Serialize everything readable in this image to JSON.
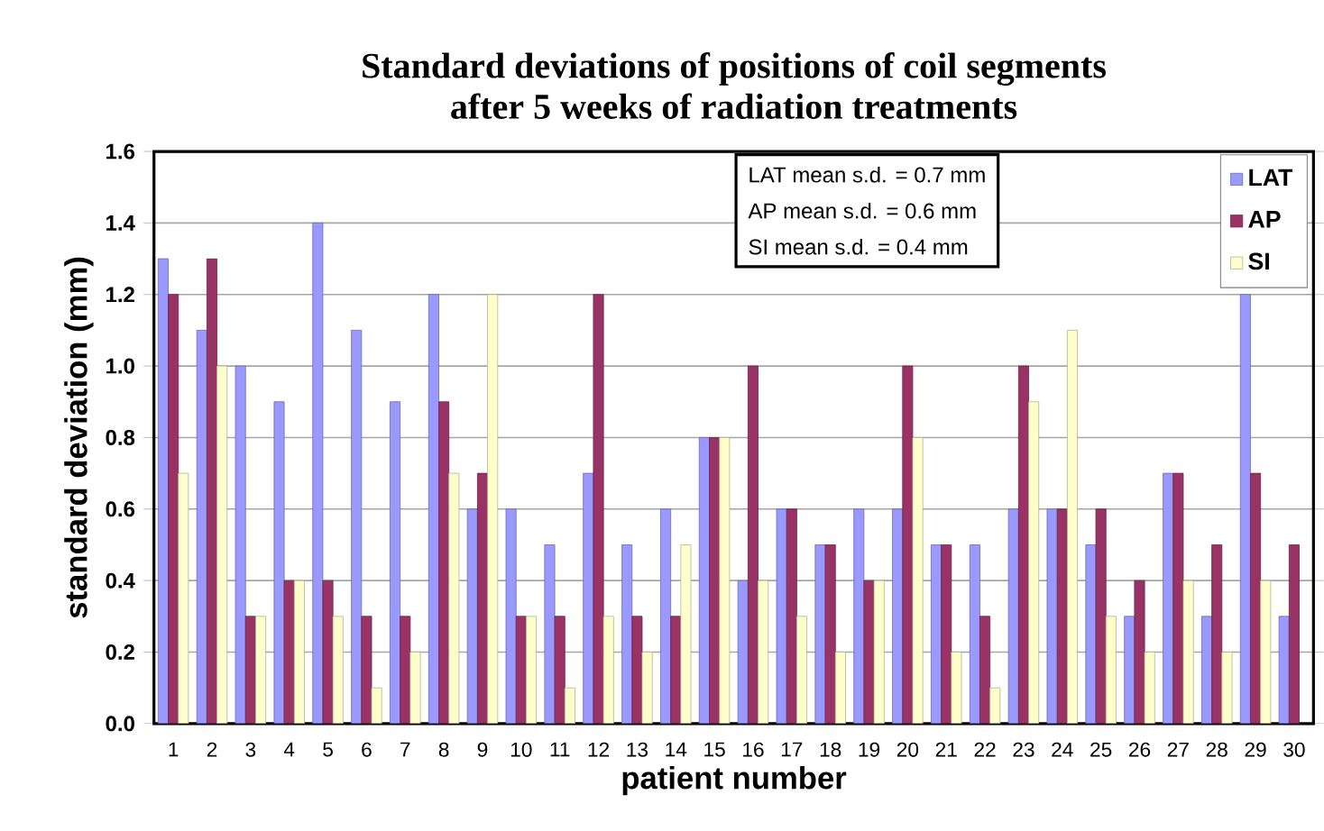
{
  "chart_data": {
    "type": "bar",
    "title": "Standard deviations of positions of coil segments\nafter 5 weeks of radiation treatments",
    "xlabel": "patient number",
    "ylabel": "standard deviation (mm)",
    "categories": [
      "1",
      "2",
      "3",
      "4",
      "5",
      "6",
      "7",
      "8",
      "9",
      "10",
      "11",
      "12",
      "13",
      "14",
      "15",
      "16",
      "17",
      "18",
      "19",
      "20",
      "21",
      "22",
      "23",
      "24",
      "25",
      "26",
      "27",
      "28",
      "29",
      "30"
    ],
    "series": [
      {
        "name": "LAT",
        "color": "#9999ff",
        "values": [
          1.3,
          1.1,
          1.0,
          0.9,
          1.4,
          1.1,
          0.9,
          1.2,
          0.6,
          0.6,
          0.5,
          0.7,
          0.5,
          0.6,
          0.8,
          0.4,
          0.6,
          0.5,
          0.6,
          0.6,
          0.5,
          0.5,
          0.6,
          0.6,
          0.5,
          0.3,
          0.7,
          0.3,
          1.2,
          0.3
        ]
      },
      {
        "name": "AP",
        "color": "#993366",
        "values": [
          1.2,
          1.3,
          0.3,
          0.4,
          0.4,
          0.3,
          0.3,
          0.9,
          0.7,
          0.3,
          0.3,
          1.2,
          0.3,
          0.3,
          0.8,
          1.0,
          0.6,
          0.5,
          0.4,
          1.0,
          0.5,
          0.3,
          1.0,
          0.6,
          0.6,
          0.4,
          0.7,
          0.5,
          0.7,
          0.5
        ]
      },
      {
        "name": "SI",
        "color": "#ffffcc",
        "values": [
          0.7,
          1.0,
          0.3,
          0.4,
          0.3,
          0.1,
          0.2,
          0.7,
          1.2,
          0.3,
          0.1,
          0.3,
          0.2,
          0.5,
          0.8,
          0.4,
          0.3,
          0.2,
          0.4,
          0.8,
          0.2,
          0.1,
          0.9,
          1.1,
          0.3,
          0.2,
          0.4,
          0.2,
          0.4,
          null
        ]
      }
    ],
    "ylim": [
      0,
      1.6
    ],
    "yticks": [
      {
        "value": 0,
        "label": "0.0"
      },
      0.2,
      0.4,
      0.6,
      0.8,
      {
        "value": 1,
        "label": "1.0"
      },
      1.2,
      1.4,
      1.6
    ],
    "annotations": [
      "LAT mean s.d. = 0.7 mm",
      "AP mean s.d. =   0.6 mm",
      "SI mean s.d. =    0.4 mm"
    ],
    "grid": "y",
    "legend": "top right"
  }
}
